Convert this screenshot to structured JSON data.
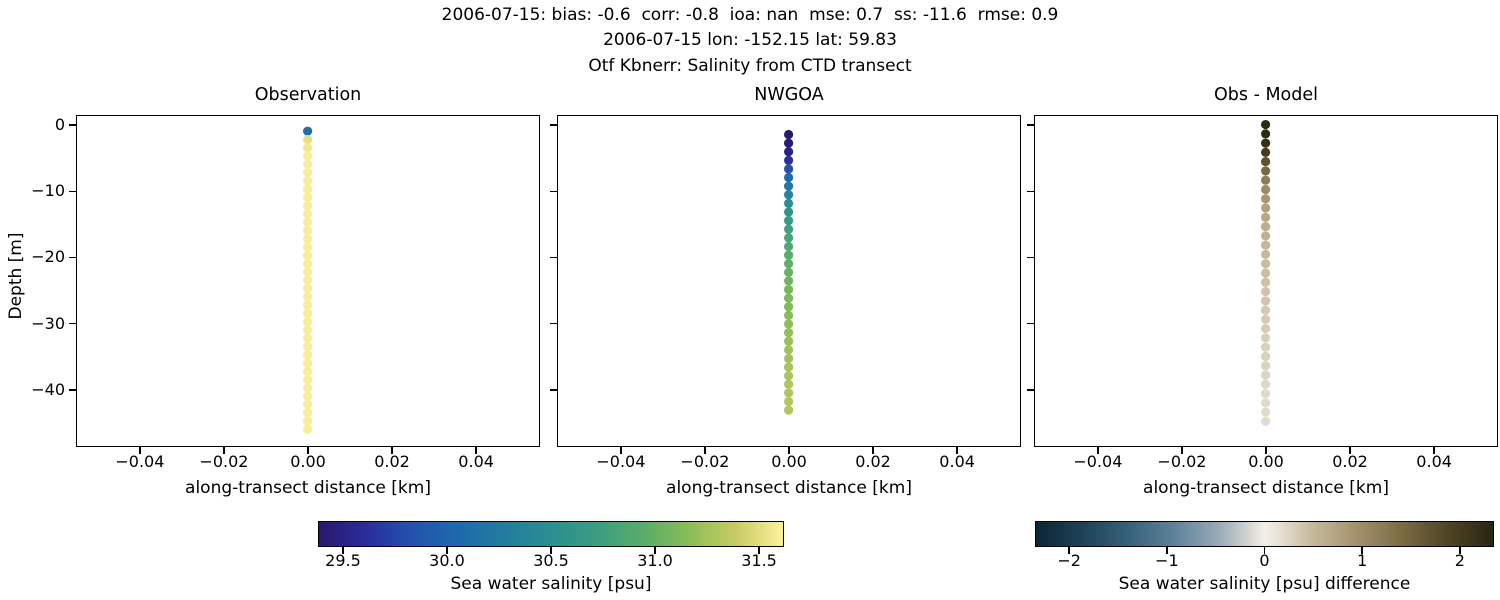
{
  "chart_data": {
    "type": "scatter",
    "suptitle": [
      "2006-07-15: bias: -0.6  corr: -0.8  ioa: nan  mse: 0.7  ss: -11.6  rmse: 0.9",
      "2006-07-15 lon: -152.15 lat: 59.83",
      "Otf Kbnerr: Salinity from CTD transect"
    ],
    "xlabel": "along-transect distance [km]",
    "ylabel": "Depth [m]",
    "xlim": [
      -0.0552,
      0.0552
    ],
    "ylim": [
      1.5,
      -48.6
    ],
    "grid": false,
    "xticks": {
      "values": [
        -0.04,
        -0.02,
        0.0,
        0.02,
        0.04
      ],
      "labels": [
        "−0.04",
        "−0.02",
        "0.00",
        "0.02",
        "0.04"
      ]
    },
    "yticks": {
      "values": [
        0,
        -10,
        -20,
        -30,
        -40
      ],
      "labels": [
        "0",
        "−10",
        "−20",
        "−30",
        "−40"
      ]
    },
    "panels": [
      {
        "title": "Observation",
        "x_km": 0.0,
        "colormap": "haline",
        "clim": [
          29.38,
          31.62
        ],
        "depths_m": [
          -1.0,
          -2.25,
          -3.5,
          -4.75,
          -6.0,
          -7.25,
          -8.5,
          -9.75,
          -11.0,
          -12.25,
          -13.5,
          -14.75,
          -16.0,
          -17.25,
          -18.5,
          -19.75,
          -21.0,
          -22.25,
          -23.5,
          -24.75,
          -26.0,
          -27.25,
          -28.5,
          -29.75,
          -31.0,
          -32.25,
          -33.5,
          -34.75,
          -36.0,
          -37.25,
          -38.5,
          -39.75,
          -41.0,
          -42.25,
          -43.5,
          -44.75,
          -46.0
        ],
        "values": [
          30.1,
          31.52,
          31.57,
          31.6,
          31.6,
          31.6,
          31.6,
          31.6,
          31.6,
          31.6,
          31.6,
          31.6,
          31.6,
          31.6,
          31.6,
          31.6,
          31.6,
          31.6,
          31.6,
          31.6,
          31.6,
          31.6,
          31.6,
          31.6,
          31.6,
          31.6,
          31.6,
          31.6,
          31.6,
          31.6,
          31.6,
          31.6,
          31.6,
          31.6,
          31.6,
          31.6,
          31.6
        ]
      },
      {
        "title": "NWGOA",
        "x_km": 0.0,
        "colormap": "haline",
        "clim": [
          29.38,
          31.62
        ],
        "depths_m": [
          -1.5,
          -2.8,
          -4.1,
          -5.4,
          -6.7,
          -8.0,
          -9.3,
          -10.6,
          -11.9,
          -13.2,
          -14.5,
          -15.8,
          -17.1,
          -18.4,
          -19.7,
          -21.0,
          -22.3,
          -23.6,
          -24.9,
          -26.2,
          -27.5,
          -28.8,
          -30.1,
          -31.4,
          -32.7,
          -34.0,
          -35.3,
          -36.6,
          -37.9,
          -39.2,
          -40.5,
          -41.8,
          -43.1
        ],
        "values": [
          29.4,
          29.44,
          29.5,
          29.62,
          29.82,
          30.05,
          30.22,
          30.38,
          30.5,
          30.6,
          30.68,
          30.76,
          30.82,
          30.88,
          30.93,
          30.97,
          31.01,
          31.05,
          31.08,
          31.11,
          31.13,
          31.16,
          31.18,
          31.2,
          31.22,
          31.24,
          31.25,
          31.27,
          31.28,
          31.29,
          31.3,
          31.31,
          31.32
        ]
      },
      {
        "title": "Obs - Model",
        "x_km": 0.0,
        "colormap": "diff",
        "clim": [
          -2.35,
          2.35
        ],
        "depths_m": [
          0.0,
          -1.4,
          -2.8,
          -4.2,
          -5.6,
          -7.0,
          -8.4,
          -9.8,
          -11.2,
          -12.6,
          -14.0,
          -15.4,
          -16.8,
          -18.2,
          -19.6,
          -21.0,
          -22.4,
          -23.8,
          -25.2,
          -26.6,
          -28.0,
          -29.4,
          -30.8,
          -32.2,
          -33.6,
          -35.0,
          -36.4,
          -37.8,
          -39.2,
          -40.6,
          -42.0,
          -43.4,
          -44.8
        ],
        "values": [
          2.3,
          2.28,
          2.2,
          2.0,
          1.72,
          1.45,
          1.2,
          1.02,
          0.88,
          0.78,
          0.7,
          0.63,
          0.58,
          0.53,
          0.5,
          0.47,
          0.44,
          0.42,
          0.4,
          0.38,
          0.36,
          0.34,
          0.32,
          0.31,
          0.29,
          0.28,
          0.26,
          0.25,
          0.24,
          0.22,
          0.21,
          0.2,
          0.18
        ]
      }
    ],
    "colorbars": [
      {
        "colormap": "haline",
        "label": "Sea water salinity [psu]",
        "vmin": 29.38,
        "vmax": 31.62,
        "ticks": {
          "values": [
            29.5,
            30.0,
            30.5,
            31.0,
            31.5
          ],
          "labels": [
            "29.5",
            "30.0",
            "30.5",
            "31.0",
            "31.5"
          ]
        }
      },
      {
        "colormap": "diff",
        "label": "Sea water salinity [psu] difference",
        "vmin": -2.35,
        "vmax": 2.35,
        "ticks": {
          "values": [
            -2,
            -1,
            0,
            1,
            2
          ],
          "labels": [
            "−2",
            "−1",
            "0",
            "1",
            "2"
          ]
        }
      }
    ],
    "colormaps": {
      "haline": [
        [
          0.0,
          "#29186b"
        ],
        [
          0.1,
          "#2a2c9c"
        ],
        [
          0.2,
          "#2353ae"
        ],
        [
          0.3,
          "#1e6aac"
        ],
        [
          0.4,
          "#227da0"
        ],
        [
          0.5,
          "#2b8e92"
        ],
        [
          0.6,
          "#3b9e80"
        ],
        [
          0.7,
          "#58ad68"
        ],
        [
          0.8,
          "#8cbd56"
        ],
        [
          0.9,
          "#c9cc64"
        ],
        [
          1.0,
          "#fdf09e"
        ]
      ],
      "diff": [
        [
          0.0,
          "#0c2534"
        ],
        [
          0.1,
          "#1c4257"
        ],
        [
          0.2,
          "#356179"
        ],
        [
          0.3,
          "#5d8099"
        ],
        [
          0.4,
          "#97aab7"
        ],
        [
          0.47,
          "#d9d8d4"
        ],
        [
          0.5,
          "#f2efe9"
        ],
        [
          0.53,
          "#e8e2d5"
        ],
        [
          0.6,
          "#c8bc9e"
        ],
        [
          0.7,
          "#a3926a"
        ],
        [
          0.8,
          "#7b6c42"
        ],
        [
          0.9,
          "#4f4526"
        ],
        [
          1.0,
          "#2a260f"
        ]
      ]
    }
  }
}
